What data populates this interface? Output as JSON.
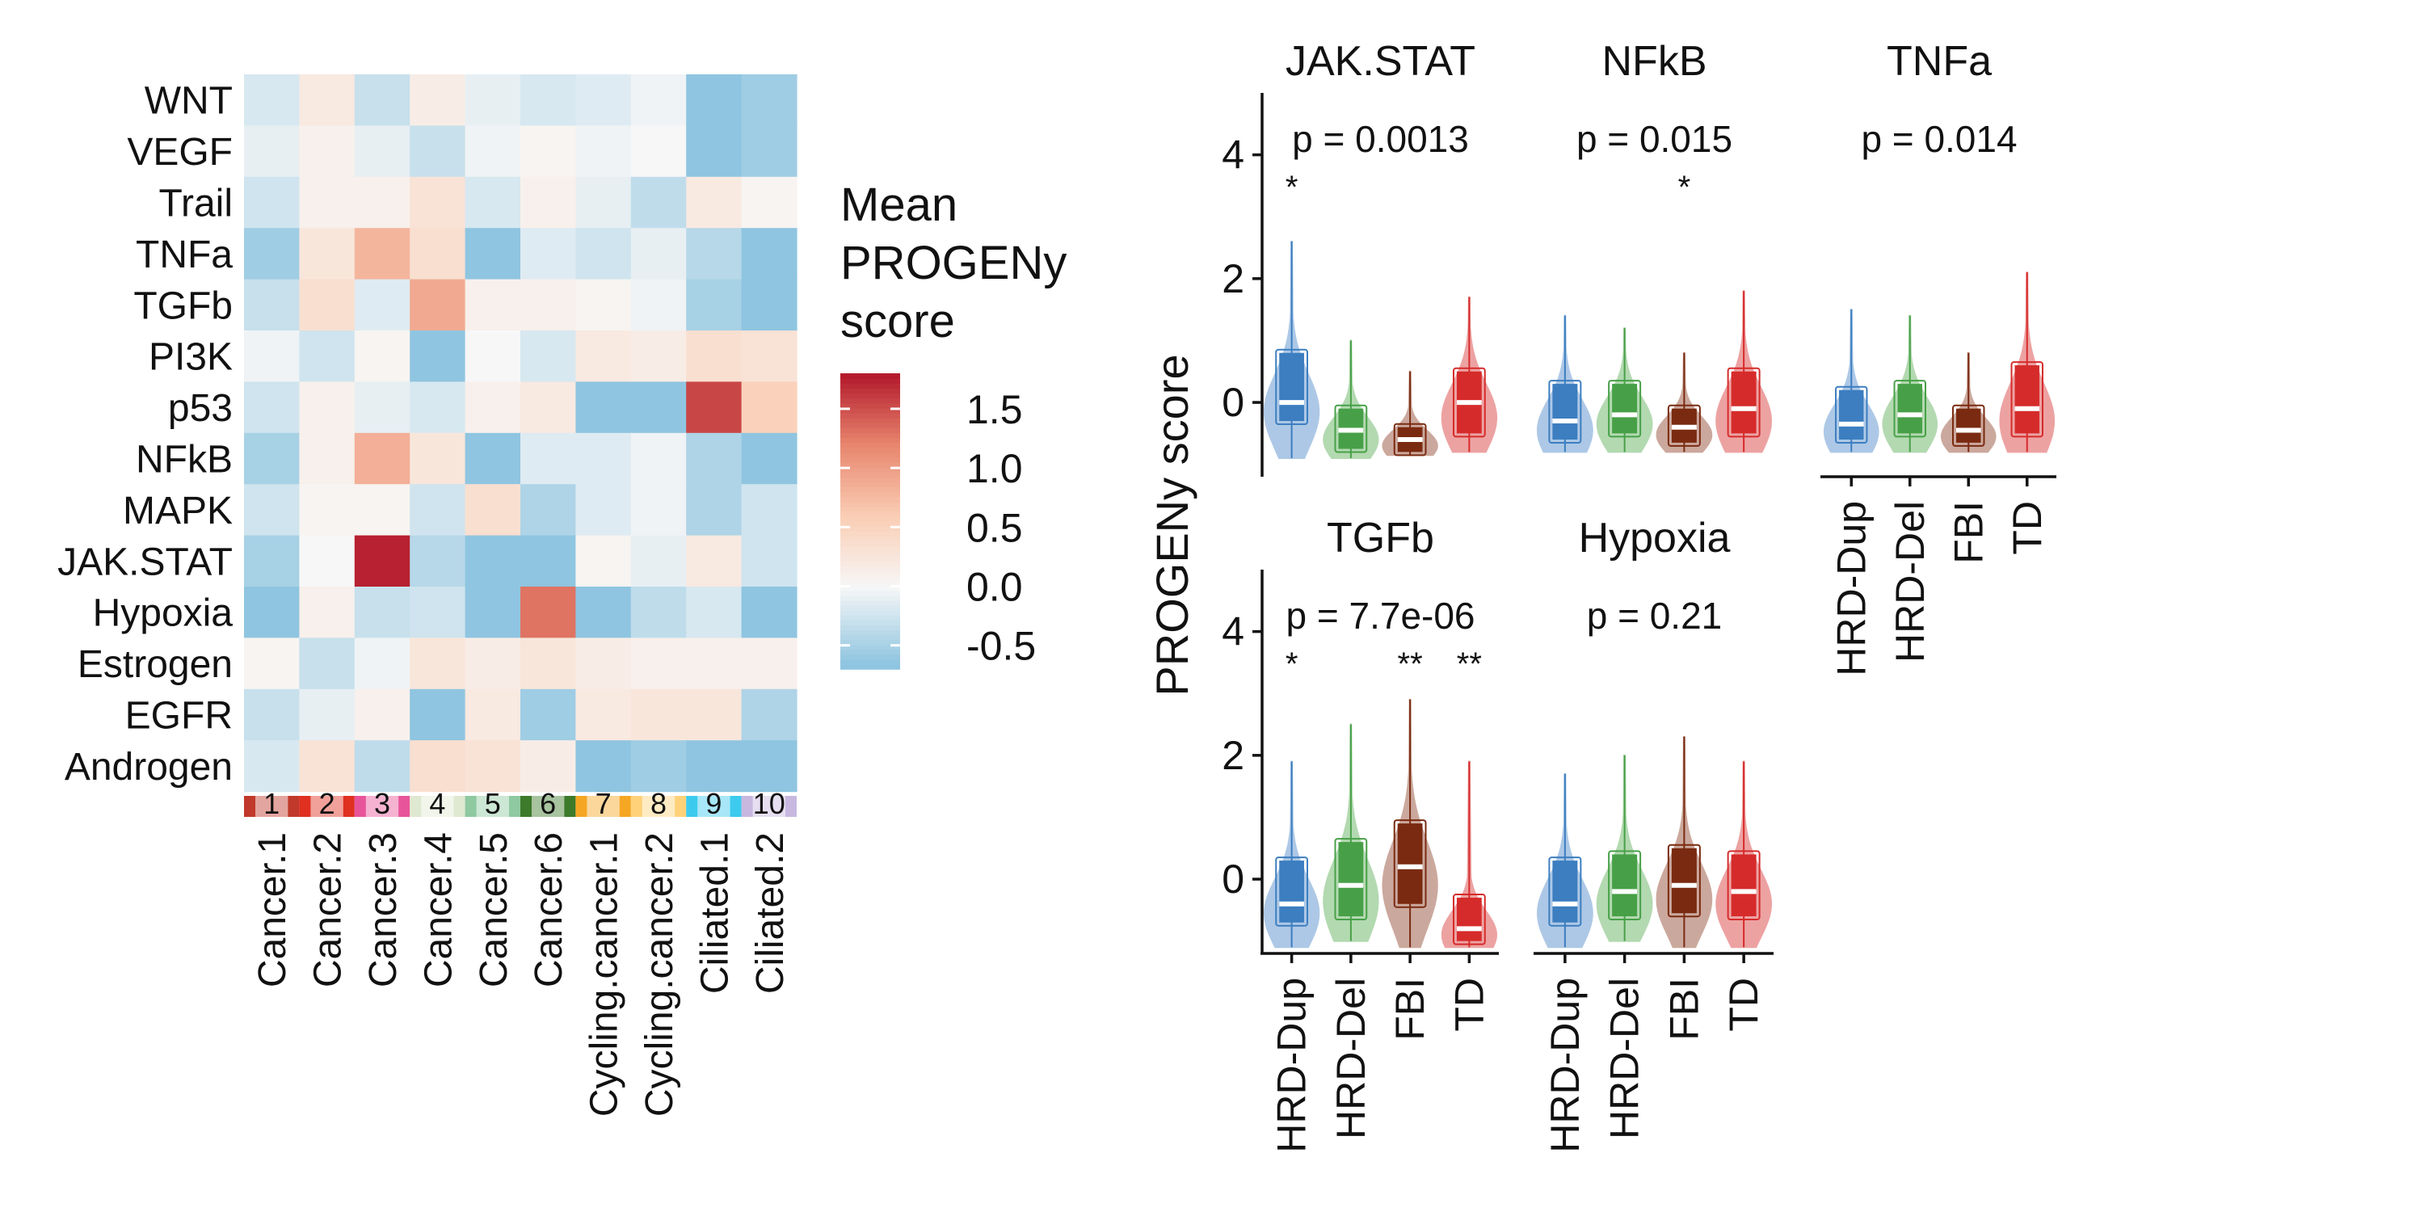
{
  "heatmap": {
    "rows": [
      "WNT",
      "VEGF",
      "Trail",
      "TNFa",
      "TGFb",
      "PI3K",
      "p53",
      "NFkB",
      "MAPK",
      "JAK.STAT",
      "Hypoxia",
      "Estrogen",
      "EGFR",
      "Androgen"
    ],
    "columns": [
      "Cancer.1",
      "Cancer.2",
      "Cancer.3",
      "Cancer.4",
      "Cancer.5",
      "Cancer.6",
      "Cycling.cancer.1",
      "Cycling.cancer.2",
      "Ciliated.1",
      "Ciliated.2"
    ],
    "cluster_numbers": [
      "1",
      "2",
      "3",
      "4",
      "5",
      "6",
      "7",
      "8",
      "9",
      "10"
    ],
    "cluster_colors": [
      "#c0392b",
      "#e03020",
      "#e8549a",
      "#dfe8d0",
      "#8ec9a0",
      "#3d7a2a",
      "#f5a623",
      "#ffd27a",
      "#3ccbee",
      "#c8b8e0"
    ],
    "values": [
      [
        -0.2,
        0.2,
        -0.3,
        0.15,
        -0.1,
        -0.2,
        -0.15,
        -0.05,
        -0.7,
        -0.55
      ],
      [
        -0.1,
        0.1,
        -0.1,
        -0.3,
        -0.05,
        0.05,
        -0.05,
        0.0,
        -0.7,
        -0.55
      ],
      [
        -0.25,
        0.1,
        0.1,
        0.3,
        -0.2,
        0.1,
        -0.1,
        -0.35,
        0.2,
        0.05
      ],
      [
        -0.55,
        0.25,
        0.8,
        0.35,
        -0.7,
        -0.15,
        -0.25,
        -0.1,
        -0.4,
        -0.65
      ],
      [
        -0.3,
        0.35,
        -0.15,
        0.9,
        0.1,
        0.1,
        0.05,
        -0.05,
        -0.5,
        -0.65
      ],
      [
        -0.05,
        -0.25,
        0.05,
        -0.7,
        0.0,
        -0.2,
        0.2,
        0.15,
        0.35,
        0.3
      ],
      [
        -0.25,
        0.1,
        -0.1,
        -0.2,
        0.1,
        0.2,
        -0.7,
        -0.7,
        1.55,
        0.55
      ],
      [
        -0.5,
        0.1,
        0.85,
        0.25,
        -0.7,
        -0.15,
        -0.15,
        -0.05,
        -0.45,
        -0.65
      ],
      [
        -0.25,
        0.05,
        0.05,
        -0.25,
        0.35,
        -0.45,
        -0.15,
        -0.05,
        -0.45,
        -0.25
      ],
      [
        -0.5,
        0.0,
        1.75,
        -0.4,
        -0.7,
        -0.7,
        0.05,
        -0.1,
        0.2,
        -0.25
      ],
      [
        -0.7,
        0.1,
        -0.3,
        -0.25,
        -0.7,
        1.3,
        -0.65,
        -0.35,
        -0.2,
        -0.65
      ],
      [
        0.05,
        -0.3,
        -0.05,
        0.25,
        0.15,
        0.25,
        0.15,
        0.1,
        0.1,
        0.1
      ],
      [
        -0.3,
        -0.1,
        0.1,
        -0.7,
        0.2,
        -0.55,
        0.2,
        0.25,
        0.25,
        -0.45
      ],
      [
        -0.2,
        0.3,
        -0.35,
        0.35,
        0.3,
        0.15,
        -0.65,
        -0.55,
        -0.7,
        -0.7
      ]
    ],
    "legend_title": [
      "Mean",
      "PROGENy",
      "score"
    ],
    "legend_ticks": [
      "1.5",
      "1.0",
      "0.5",
      "0.0",
      "-0.5"
    ],
    "legend_tick_values": [
      1.5,
      1.0,
      0.5,
      0.0,
      -0.5
    ],
    "range": [
      -0.7,
      1.8
    ]
  },
  "chart_data": {
    "type": "violin",
    "ylabel": "PROGENy score",
    "ylim": [
      -1.2,
      5.0
    ],
    "yticks": [
      "0",
      "2",
      "4"
    ],
    "ytick_values": [
      0,
      2,
      4
    ],
    "groups": [
      "HRD-Dup",
      "HRD-Del",
      "FBI",
      "TD"
    ],
    "group_colors": [
      "#3c7ec0",
      "#47a047",
      "#7a2a10",
      "#d62b2b"
    ],
    "group_light_colors": [
      "#9fbfe2",
      "#a6d3a4",
      "#c39a8d",
      "#eb9292"
    ],
    "panels": [
      {
        "title": "JAK.STAT",
        "pvalue": "p = 0.0013",
        "stars": [
          "*",
          "",
          "",
          ""
        ],
        "violins": [
          {
            "min": -0.9,
            "q1": -0.3,
            "median": 0.0,
            "q3": 0.8,
            "max": 2.6
          },
          {
            "min": -0.9,
            "q1": -0.75,
            "median": -0.45,
            "q3": -0.1,
            "max": 1.0
          },
          {
            "min": -0.85,
            "q1": -0.8,
            "median": -0.6,
            "q3": -0.4,
            "max": 0.5
          },
          {
            "min": -0.8,
            "q1": -0.5,
            "median": 0.0,
            "q3": 0.5,
            "max": 1.7
          }
        ]
      },
      {
        "title": "NFkB",
        "pvalue": "p = 0.015",
        "stars": [
          "",
          "",
          "*",
          ""
        ],
        "violins": [
          {
            "min": -0.8,
            "q1": -0.6,
            "median": -0.3,
            "q3": 0.3,
            "max": 1.4
          },
          {
            "min": -0.8,
            "q1": -0.5,
            "median": -0.2,
            "q3": 0.3,
            "max": 1.2
          },
          {
            "min": -0.8,
            "q1": -0.65,
            "median": -0.4,
            "q3": -0.1,
            "max": 0.8
          },
          {
            "min": -0.8,
            "q1": -0.5,
            "median": -0.1,
            "q3": 0.5,
            "max": 1.8
          }
        ]
      },
      {
        "title": "TNFa",
        "pvalue": "p = 0.014",
        "stars": [
          "",
          "",
          "",
          ""
        ],
        "violins": [
          {
            "min": -0.8,
            "q1": -0.6,
            "median": -0.35,
            "q3": 0.2,
            "max": 1.5
          },
          {
            "min": -0.8,
            "q1": -0.5,
            "median": -0.2,
            "q3": 0.3,
            "max": 1.4
          },
          {
            "min": -0.8,
            "q1": -0.65,
            "median": -0.45,
            "q3": -0.1,
            "max": 0.8
          },
          {
            "min": -0.8,
            "q1": -0.5,
            "median": -0.1,
            "q3": 0.6,
            "max": 2.1
          }
        ]
      },
      {
        "title": "TGFb",
        "pvalue": "p = 7.7e-06",
        "stars": [
          "*",
          "",
          "**",
          "**"
        ],
        "violins": [
          {
            "min": -1.1,
            "q1": -0.7,
            "median": -0.4,
            "q3": 0.3,
            "max": 1.9
          },
          {
            "min": -1.0,
            "q1": -0.6,
            "median": -0.1,
            "q3": 0.6,
            "max": 2.5
          },
          {
            "min": -1.1,
            "q1": -0.4,
            "median": 0.2,
            "q3": 0.9,
            "max": 2.9
          },
          {
            "min": -1.1,
            "q1": -1.0,
            "median": -0.8,
            "q3": -0.3,
            "max": 1.9
          }
        ]
      },
      {
        "title": "Hypoxia",
        "pvalue": "p = 0.21",
        "stars": [
          "",
          "",
          "",
          ""
        ],
        "violins": [
          {
            "min": -1.1,
            "q1": -0.7,
            "median": -0.4,
            "q3": 0.3,
            "max": 1.7
          },
          {
            "min": -1.0,
            "q1": -0.6,
            "median": -0.2,
            "q3": 0.4,
            "max": 2.0
          },
          {
            "min": -1.1,
            "q1": -0.55,
            "median": -0.1,
            "q3": 0.5,
            "max": 2.3
          },
          {
            "min": -1.1,
            "q1": -0.6,
            "median": -0.2,
            "q3": 0.4,
            "max": 1.9
          }
        ]
      }
    ]
  }
}
